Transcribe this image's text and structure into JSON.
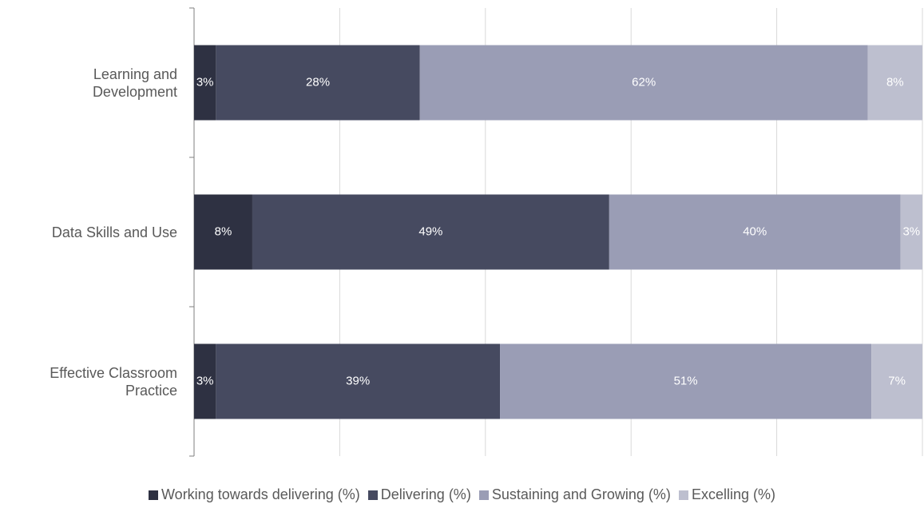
{
  "chart_data": {
    "type": "stacked_bar_horizontal",
    "categories": [
      "Learning and Development",
      "Data Skills and Use",
      "Effective Classroom Practice"
    ],
    "series": [
      {
        "name": "Working towards delivering (%)",
        "color": "#2e3142",
        "values": [
          3,
          8,
          3
        ],
        "value_labels": [
          "3%",
          "8%",
          "3%"
        ]
      },
      {
        "name": "Delivering (%)",
        "color": "#464a60",
        "values": [
          28,
          49,
          39
        ],
        "value_labels": [
          "28%",
          "49%",
          "39%"
        ]
      },
      {
        "name": "Sustaining and Growing (%)",
        "color": "#9a9db5",
        "values": [
          61.5,
          40,
          51
        ],
        "value_labels": [
          "62%",
          "40%",
          "51%"
        ]
      },
      {
        "name": "Excelling (%)",
        "color": "#bdbfcf",
        "values": [
          7.5,
          3,
          7
        ],
        "value_labels": [
          "8%",
          "3%",
          "7%"
        ]
      }
    ],
    "xlim": [
      0,
      100
    ],
    "xticks": [
      0,
      20,
      40,
      60,
      80,
      100
    ],
    "grid": true,
    "legend": "bottom"
  }
}
